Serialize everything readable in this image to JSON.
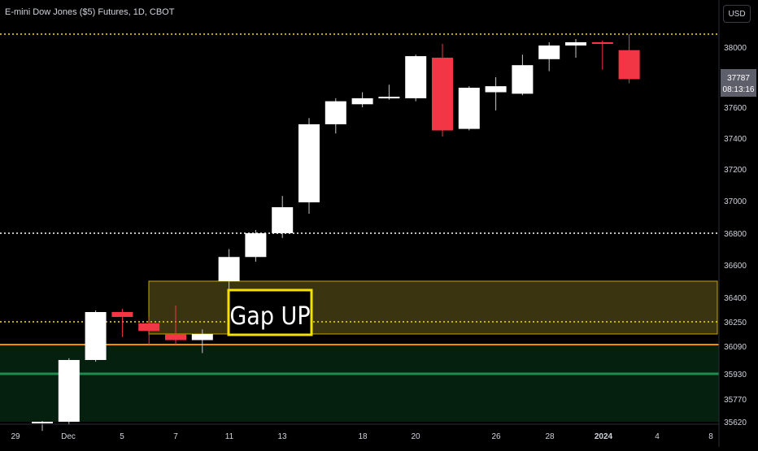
{
  "header": {
    "symbol_title": "E-mini Dow Jones ($5) Futures, 1D, CBOT",
    "currency": "USD"
  },
  "colors": {
    "background": "#000000",
    "bull": "#ffffff",
    "bear": "#f23645",
    "gap_zone_fill": "#3b3410",
    "gap_zone_border": "#c8a800",
    "gap_label_border": "#f5e200",
    "support_zone_fill": "#06200f",
    "support_line": "#1e8c4e",
    "orange_line": "#ff9800",
    "dotted_level": "#f5e200",
    "white_dotted_level": "#ffffff",
    "axis_text": "#d1d4dc"
  },
  "price_label": {
    "price": "37787",
    "countdown": "08:13:16"
  },
  "chart_data": {
    "type": "candlestick",
    "title": "E-mini Dow Jones ($5) Futures, 1D, CBOT",
    "x_ticks": [
      "29",
      "Dec",
      "5",
      "7",
      "11",
      "13",
      "18",
      "20",
      "26",
      "28",
      "2024",
      "4",
      "8"
    ],
    "y_ticks": [
      38000,
      37800,
      37600,
      37400,
      37200,
      37000,
      36800,
      36600,
      36400,
      36250,
      36090,
      35930,
      35770,
      35620
    ],
    "y_axis_scale": "nonlinear (tick labels as printed)",
    "candles": [
      {
        "o": 35620,
        "h": 35625,
        "l": 35560,
        "c": 35620
      },
      {
        "o": 35620,
        "h": 36020,
        "l": 35600,
        "c": 36010
      },
      {
        "o": 36010,
        "h": 36320,
        "l": 36000,
        "c": 36310
      },
      {
        "o": 36310,
        "h": 36330,
        "l": 36150,
        "c": 36280
      },
      {
        "o": 36240,
        "h": 36280,
        "l": 36100,
        "c": 36190
      },
      {
        "o": 36170,
        "h": 36350,
        "l": 36100,
        "c": 36130
      },
      {
        "o": 36130,
        "h": 36200,
        "l": 36050,
        "c": 36170
      },
      {
        "o": 36500,
        "h": 36700,
        "l": 36350,
        "c": 36650
      },
      {
        "o": 36650,
        "h": 36820,
        "l": 36620,
        "c": 36800
      },
      {
        "o": 36800,
        "h": 37030,
        "l": 36770,
        "c": 36960
      },
      {
        "o": 36990,
        "h": 37530,
        "l": 36920,
        "c": 37490
      },
      {
        "o": 37490,
        "h": 37660,
        "l": 37430,
        "c": 37640
      },
      {
        "o": 37620,
        "h": 37700,
        "l": 37600,
        "c": 37660
      },
      {
        "o": 37660,
        "h": 37750,
        "l": 37650,
        "c": 37670
      },
      {
        "o": 37660,
        "h": 37950,
        "l": 37640,
        "c": 37940
      },
      {
        "o": 37930,
        "h": 38020,
        "l": 37410,
        "c": 37450
      },
      {
        "o": 37460,
        "h": 37740,
        "l": 37450,
        "c": 37730
      },
      {
        "o": 37700,
        "h": 37800,
        "l": 37580,
        "c": 37740
      },
      {
        "o": 37690,
        "h": 37950,
        "l": 37680,
        "c": 37880
      },
      {
        "o": 37920,
        "h": 38030,
        "l": 37840,
        "c": 38010
      },
      {
        "o": 38010,
        "h": 38050,
        "l": 37930,
        "c": 38030
      },
      {
        "o": 38030,
        "h": 38040,
        "l": 37850,
        "c": 38020
      },
      {
        "o": 37980,
        "h": 38080,
        "l": 37760,
        "c": 37787
      }
    ],
    "levels": [
      {
        "price": 38080,
        "style": "dotted",
        "color": "yellow"
      },
      {
        "price": 36800,
        "style": "dotted",
        "color": "white"
      },
      {
        "price": 36250,
        "style": "dotted",
        "color": "yellow"
      },
      {
        "price": 36100,
        "style": "solid",
        "color": "orange"
      },
      {
        "price": 35930,
        "style": "solid",
        "color": "green"
      }
    ],
    "zones": [
      {
        "name": "gap",
        "from": 36170,
        "to": 36500
      },
      {
        "name": "support",
        "from": 35620,
        "to": 36090
      }
    ],
    "annotations": [
      {
        "text": "Gap UP"
      }
    ]
  }
}
